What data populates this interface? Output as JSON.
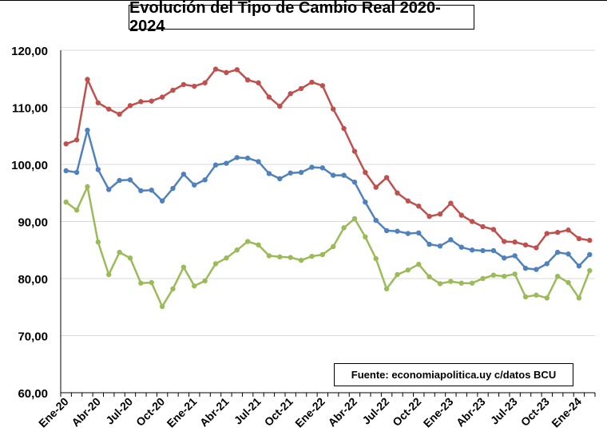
{
  "chart_data": {
    "type": "line",
    "title": "Evolución del Tipo de Cambio Real 2020-2024",
    "source_note": "Fuente: economiapolitica.uy c/datos BCU",
    "xlabel": "",
    "ylabel": "",
    "ylim": [
      60,
      120
    ],
    "y_ticks": [
      "60,00",
      "70,00",
      "80,00",
      "90,00",
      "100,00",
      "110,00",
      "120,00"
    ],
    "y_tick_values": [
      60,
      70,
      80,
      90,
      100,
      110,
      120
    ],
    "x_tick_labels": [
      "Ene-20",
      "Abr-20",
      "Jul-20",
      "Oct-20",
      "Ene-21",
      "Abr-21",
      "Jul-21",
      "Oct-21",
      "Ene-22",
      "Abr-22",
      "Jul-22",
      "Oct-22",
      "Ene-23",
      "Abr-23",
      "Jul-23",
      "Oct-23",
      "Ene-24"
    ],
    "grid": true,
    "legend": "none",
    "x": [
      "Ene-20",
      "Feb-20",
      "Mar-20",
      "Abr-20",
      "May-20",
      "Jun-20",
      "Jul-20",
      "Ago-20",
      "Sep-20",
      "Oct-20",
      "Nov-20",
      "Dic-20",
      "Ene-21",
      "Feb-21",
      "Mar-21",
      "Abr-21",
      "May-21",
      "Jun-21",
      "Jul-21",
      "Ago-21",
      "Sep-21",
      "Oct-21",
      "Nov-21",
      "Dic-21",
      "Ene-22",
      "Feb-22",
      "Mar-22",
      "Abr-22",
      "May-22",
      "Jun-22",
      "Jul-22",
      "Ago-22",
      "Sep-22",
      "Oct-22",
      "Nov-22",
      "Dic-22",
      "Ene-23",
      "Feb-23",
      "Mar-23",
      "Abr-23",
      "May-23",
      "Jun-23",
      "Jul-23",
      "Ago-23",
      "Sep-23",
      "Oct-23",
      "Nov-23",
      "Dic-23",
      "Ene-24",
      "Feb-24"
    ],
    "series": [
      {
        "color": "#c0504d",
        "values": [
          103.6,
          104.3,
          114.9,
          110.8,
          109.7,
          108.8,
          110.3,
          111.0,
          111.1,
          111.8,
          113.0,
          114.0,
          113.7,
          114.3,
          116.7,
          116.1,
          116.6,
          114.8,
          114.3,
          111.8,
          110.2,
          112.4,
          113.3,
          114.4,
          113.8,
          109.7,
          106.3,
          102.3,
          98.6,
          96.0,
          97.7,
          95.0,
          93.6,
          92.7,
          90.9,
          91.3,
          93.2,
          91.1,
          90.0,
          89.1,
          88.6,
          86.5,
          86.4,
          85.9,
          85.4,
          87.9,
          88.1,
          88.5,
          87.0,
          86.7
        ]
      },
      {
        "color": "#4f81bd",
        "values": [
          98.9,
          98.6,
          106.0,
          99.1,
          95.6,
          97.2,
          97.3,
          95.4,
          95.5,
          93.6,
          95.8,
          98.3,
          96.4,
          97.3,
          99.9,
          100.2,
          101.2,
          101.1,
          100.5,
          98.4,
          97.5,
          98.5,
          98.6,
          99.5,
          99.4,
          98.1,
          98.1,
          96.9,
          93.4,
          90.2,
          88.4,
          88.3,
          87.9,
          88.0,
          86.0,
          85.7,
          86.8,
          85.5,
          85.0,
          84.9,
          84.9,
          83.6,
          84.0,
          81.8,
          81.6,
          82.6,
          84.6,
          84.3,
          82.2,
          84.2
        ]
      },
      {
        "color": "#9bbb59",
        "values": [
          93.4,
          92.0,
          96.1,
          86.4,
          80.7,
          84.6,
          83.6,
          79.2,
          79.3,
          75.1,
          78.2,
          82.0,
          78.7,
          79.6,
          82.6,
          83.6,
          85.0,
          86.5,
          85.9,
          84.0,
          83.8,
          83.7,
          83.2,
          83.9,
          84.2,
          85.6,
          88.9,
          90.5,
          87.3,
          83.5,
          78.2,
          80.7,
          81.5,
          82.5,
          80.3,
          79.1,
          79.5,
          79.2,
          79.2,
          80.0,
          80.6,
          80.4,
          80.8,
          76.8,
          77.1,
          76.6,
          80.4,
          79.3,
          76.6,
          81.4
        ]
      }
    ]
  }
}
